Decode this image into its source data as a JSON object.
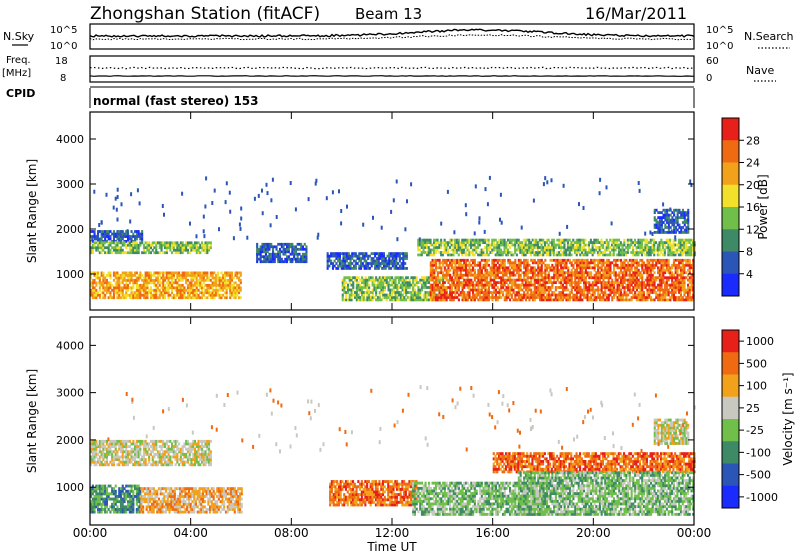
{
  "header": {
    "station": "Zhongshan Station (fitACF)",
    "beam": "Beam 13",
    "date": "16/Mar/2011"
  },
  "strips": {
    "nsky_label": "N.Sky",
    "nsearch_label": "N.Search",
    "power_ticks_top": "10^5",
    "power_ticks_bottom": "10^0",
    "freq_label_1": "Freq.",
    "freq_label_2": "[MHz]",
    "freq_ticks": [
      "18",
      "8"
    ],
    "nave_label": "Nave",
    "nave_ticks": [
      "60",
      "0"
    ],
    "cpid_label": "CPID",
    "cpid_value": "normal (fast stereo) 153"
  },
  "chart_data": [
    {
      "type": "heatmap",
      "name": "power",
      "xlabel": "Time UT",
      "ylabel": "Slant Range [km]",
      "x_ticks": [
        "00:00",
        "04:00",
        "08:00",
        "12:00",
        "16:00",
        "20:00",
        "00:00"
      ],
      "x_hours": [
        0,
        4,
        8,
        12,
        16,
        20,
        24
      ],
      "xlim": [
        0,
        24
      ],
      "ylim": [
        200,
        4600
      ],
      "y_ticks": [
        1000,
        2000,
        3000,
        4000
      ],
      "colorbar": {
        "label": "Power [dB]",
        "ticks": [
          "4",
          "8",
          "12",
          "16",
          "20",
          "24",
          "28"
        ],
        "colors": [
          "#1a2bff",
          "#2b56b8",
          "#3f8a66",
          "#6fbf4a",
          "#f2e02a",
          "#f2a21a",
          "#f06a12",
          "#e8201a"
        ]
      },
      "bands": [
        {
          "t0": 0.0,
          "t1": 2.1,
          "r0": 1700,
          "r1": 1950,
          "level": 1
        },
        {
          "t0": 0.0,
          "t1": 4.8,
          "r0": 1450,
          "r1": 1700,
          "level": 3
        },
        {
          "t0": 0.0,
          "t1": 6.0,
          "r0": 450,
          "r1": 1050,
          "level": 5
        },
        {
          "t0": 6.6,
          "t1": 8.6,
          "r0": 1250,
          "r1": 1650,
          "level": 1
        },
        {
          "t0": 9.4,
          "t1": 12.6,
          "r0": 1100,
          "r1": 1450,
          "level": 1
        },
        {
          "t0": 10.0,
          "t1": 14.0,
          "r0": 400,
          "r1": 950,
          "level": 3
        },
        {
          "t0": 13.0,
          "t1": 24.0,
          "r0": 1400,
          "r1": 1750,
          "level": 3
        },
        {
          "t0": 13.5,
          "t1": 24.0,
          "r0": 400,
          "r1": 1300,
          "level": 6
        },
        {
          "t0": 22.4,
          "t1": 23.8,
          "r0": 1900,
          "r1": 2450,
          "level": 1
        }
      ]
    },
    {
      "type": "heatmap",
      "name": "velocity",
      "xlabel": "Time UT",
      "ylabel": "Slant Range [km]",
      "x_ticks": [
        "00:00",
        "04:00",
        "08:00",
        "12:00",
        "16:00",
        "20:00",
        "00:00"
      ],
      "x_hours": [
        0,
        4,
        8,
        12,
        16,
        20,
        24
      ],
      "xlim": [
        0,
        24
      ],
      "ylim": [
        200,
        4600
      ],
      "y_ticks": [
        1000,
        2000,
        3000,
        4000
      ],
      "colorbar": {
        "label": "Velocity [m s⁻¹]",
        "ticks": [
          "1000",
          "500",
          "100",
          "25",
          "-25",
          "-100",
          "-500",
          "-1000"
        ],
        "colors": [
          "#1a2bff",
          "#2b56b8",
          "#3f8a66",
          "#6fbf4a",
          "#c8c8c0",
          "#f2a21a",
          "#f06a12",
          "#e8201a"
        ]
      },
      "bands": [
        {
          "t0": 0.0,
          "t1": 4.8,
          "r0": 1450,
          "r1": 1950,
          "level": 4
        },
        {
          "t0": 0.0,
          "t1": 2.0,
          "r0": 450,
          "r1": 1050,
          "level": 2
        },
        {
          "t0": 2.0,
          "t1": 6.0,
          "r0": 450,
          "r1": 1000,
          "level": 5
        },
        {
          "t0": 9.5,
          "t1": 13.0,
          "r0": 600,
          "r1": 1100,
          "level": 6
        },
        {
          "t0": 12.8,
          "t1": 18.0,
          "r0": 400,
          "r1": 1100,
          "level": 3
        },
        {
          "t0": 16.0,
          "t1": 24.0,
          "r0": 1300,
          "r1": 1700,
          "level": 6
        },
        {
          "t0": 17.0,
          "t1": 24.0,
          "r0": 400,
          "r1": 1300,
          "level": 3
        },
        {
          "t0": 22.4,
          "t1": 23.8,
          "r0": 1900,
          "r1": 2450,
          "level": 4
        }
      ]
    }
  ]
}
